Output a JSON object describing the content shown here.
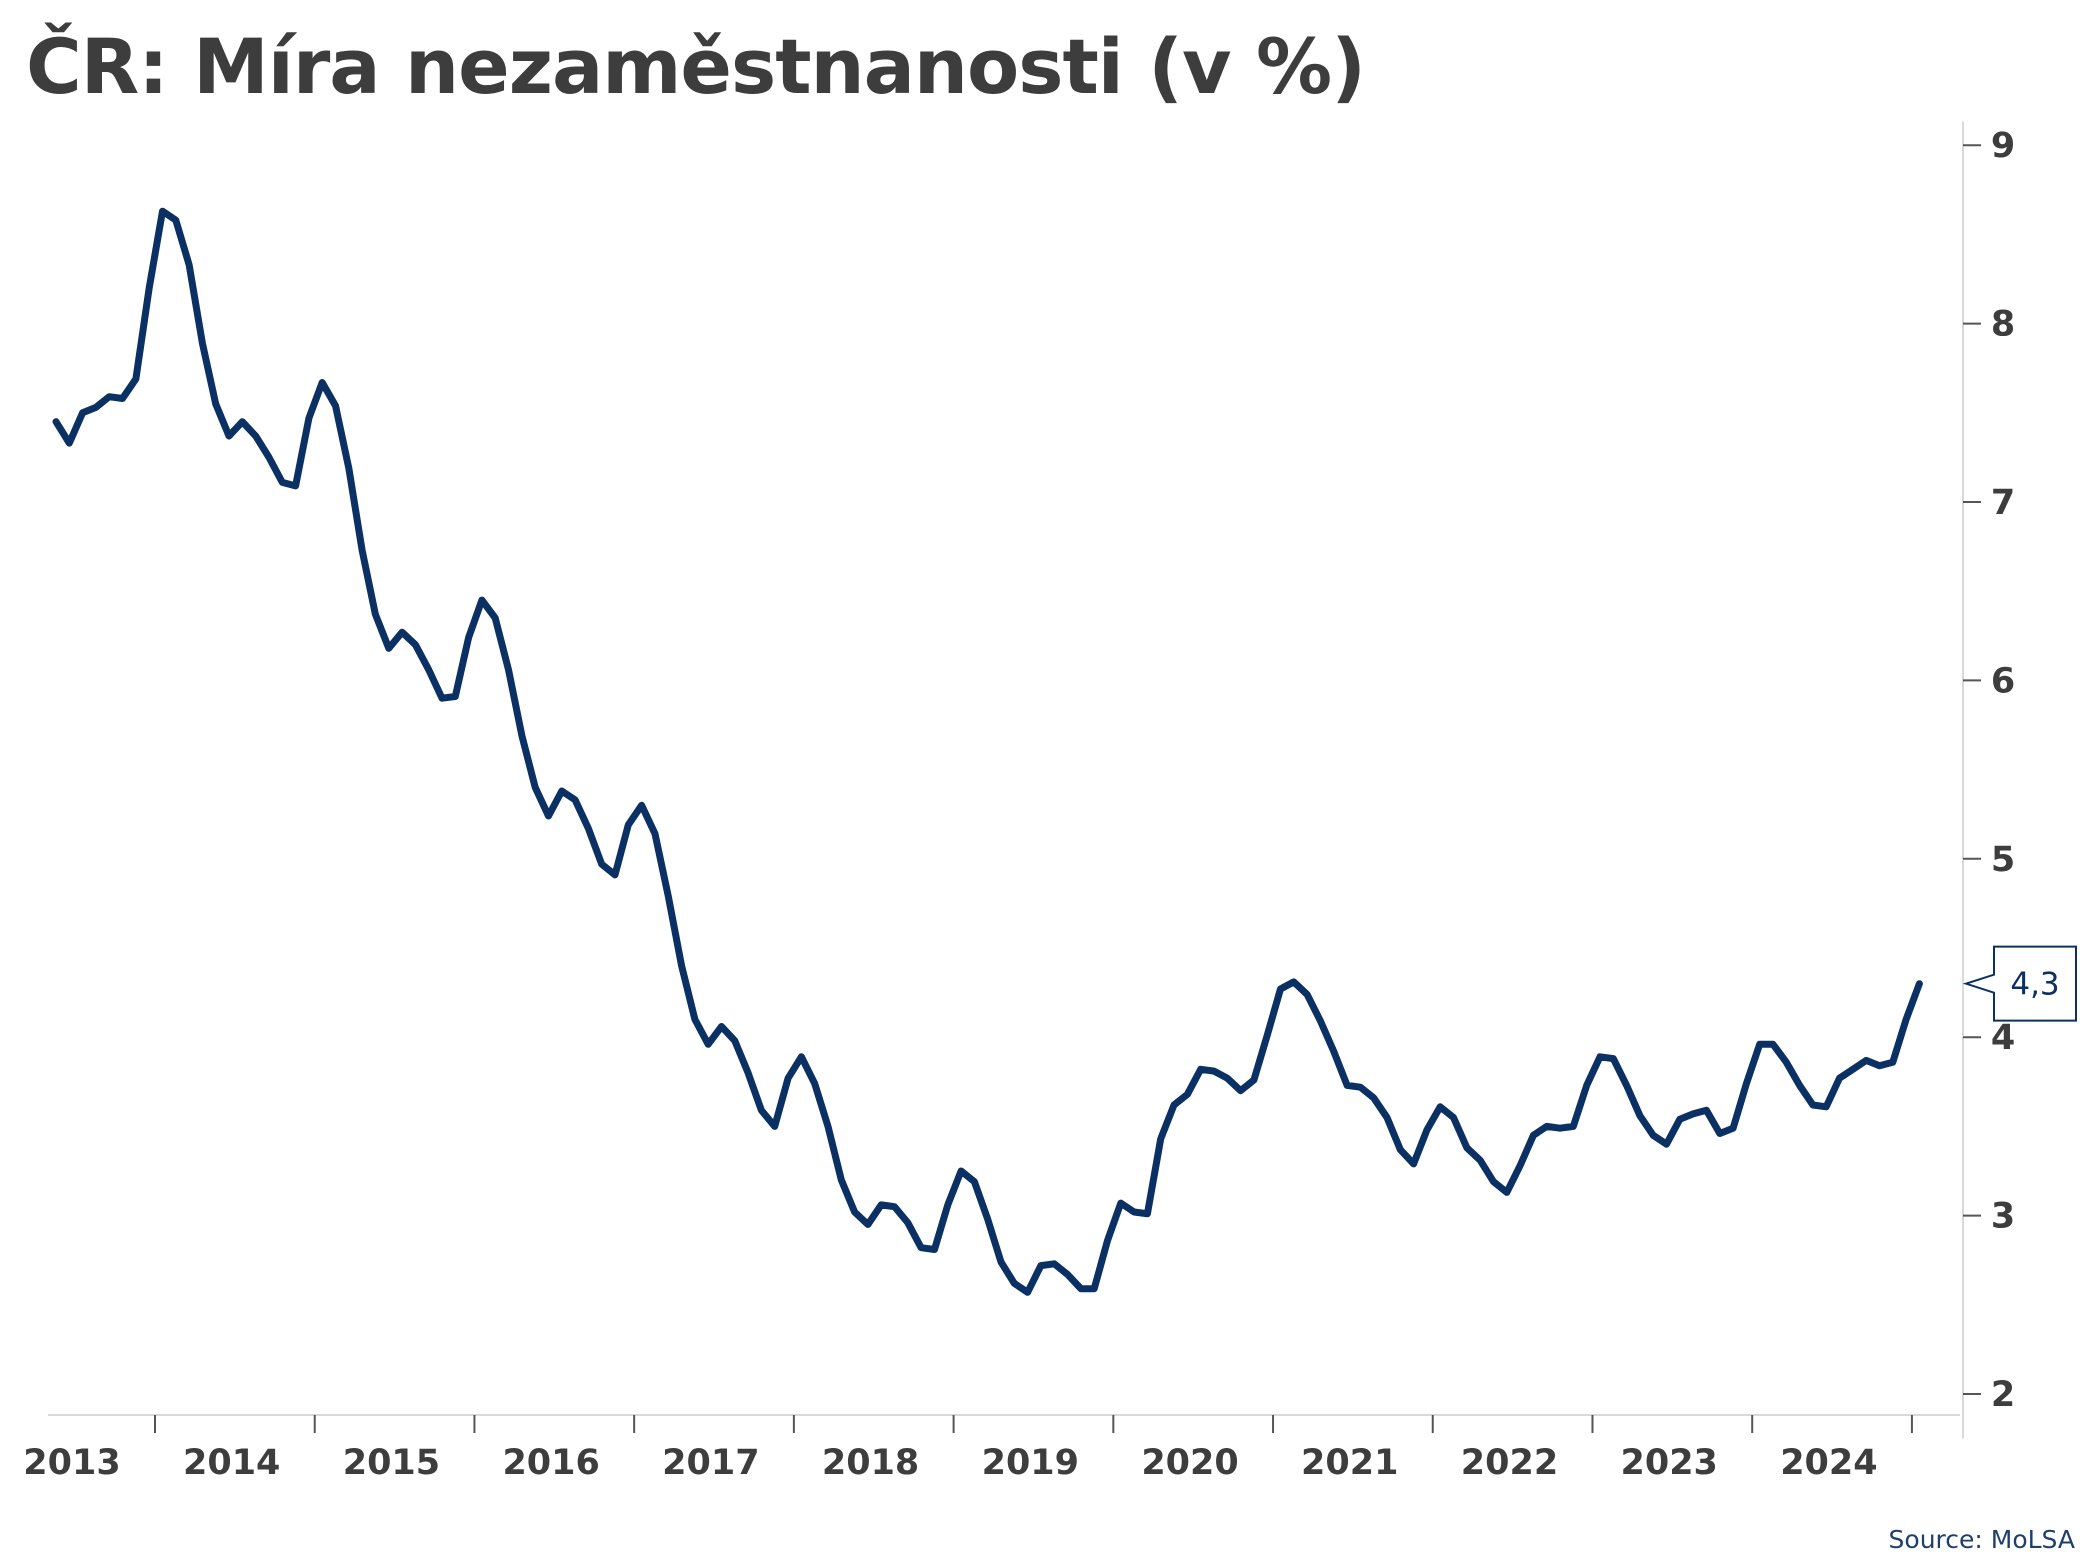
{
  "colors": {
    "series": "#0b3164",
    "title": "#3d3d3d",
    "axis": "#555555",
    "tick_label": "#3d3d3d",
    "source": "#1f3f6e"
  },
  "chart_data": {
    "type": "line",
    "title": "ČR: Míra nezaměstnanosti (v %)",
    "xlabel": "",
    "ylabel": "",
    "y_axis_position": "right",
    "grid": false,
    "legend": "none",
    "ylim": [
      1.75,
      9.1
    ],
    "y_ticks": [
      2,
      3,
      4,
      5,
      6,
      7,
      8,
      9
    ],
    "x_categories": [
      "2013",
      "2014",
      "2015",
      "2016",
      "2017",
      "2018",
      "2019",
      "2020",
      "2021",
      "2022",
      "2023",
      "2024"
    ],
    "series": [
      {
        "name": "",
        "start": "2013-01",
        "frequency": "monthly",
        "values": [
          7.45,
          7.33,
          7.5,
          7.53,
          7.59,
          7.58,
          7.69,
          8.2,
          8.63,
          8.58,
          8.33,
          7.89,
          7.55,
          7.37,
          7.45,
          7.37,
          7.25,
          7.11,
          7.09,
          7.47,
          7.67,
          7.54,
          7.19,
          6.73,
          6.37,
          6.18,
          6.27,
          6.2,
          6.06,
          5.9,
          5.91,
          6.24,
          6.45,
          6.35,
          6.06,
          5.69,
          5.4,
          5.24,
          5.38,
          5.33,
          5.17,
          4.97,
          4.91,
          5.19,
          5.3,
          5.14,
          4.79,
          4.4,
          4.1,
          3.96,
          4.06,
          3.98,
          3.8,
          3.59,
          3.5,
          3.77,
          3.89,
          3.74,
          3.5,
          3.2,
          3.02,
          2.95,
          3.06,
          3.05,
          2.96,
          2.82,
          2.81,
          3.06,
          3.25,
          3.19,
          2.98,
          2.74,
          2.62,
          2.57,
          2.72,
          2.73,
          2.67,
          2.59,
          2.59,
          2.86,
          3.07,
          3.02,
          3.01,
          3.43,
          3.62,
          3.68,
          3.82,
          3.81,
          3.77,
          3.7,
          3.76,
          4.01,
          4.27,
          4.31,
          4.24,
          4.09,
          3.92,
          3.73,
          3.72,
          3.66,
          3.55,
          3.37,
          3.29,
          3.48,
          3.61,
          3.55,
          3.38,
          3.31,
          3.19,
          3.13,
          3.28,
          3.45,
          3.5,
          3.49,
          3.5,
          3.73,
          3.89,
          3.88,
          3.73,
          3.56,
          3.45,
          3.4,
          3.54,
          3.57,
          3.59,
          3.46,
          3.49,
          3.74,
          3.96,
          3.96,
          3.86,
          3.73,
          3.62,
          3.61,
          3.77,
          3.82,
          3.87,
          3.84,
          3.86,
          4.1,
          4.3
        ]
      }
    ],
    "annotations": [
      {
        "text": "4,3",
        "value": 4.3,
        "type": "last-value-callout"
      }
    ]
  },
  "source": "Source: MoLSA"
}
